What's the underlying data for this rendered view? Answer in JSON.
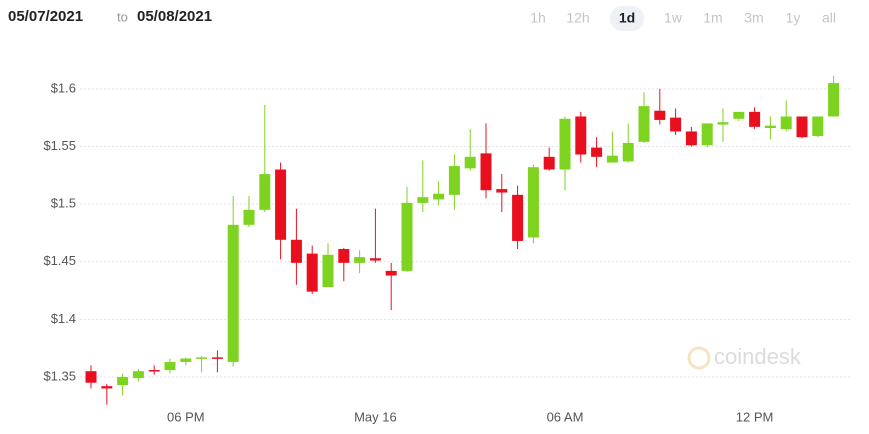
{
  "header": {
    "from": "05/07/2021",
    "to_word": "to",
    "to": "05/08/2021",
    "ranges": [
      "1h",
      "12h",
      "1d",
      "1w",
      "1m",
      "3m",
      "1y",
      "all"
    ],
    "active_range": 2
  },
  "watermark": "coindesk",
  "chart_data": {
    "type": "candlestick",
    "categories": [
      null,
      null,
      null,
      null,
      null,
      null,
      "06 PM",
      null,
      null,
      null,
      null,
      null,
      null,
      null,
      null,
      null,
      null,
      null,
      "May 16",
      null,
      null,
      null,
      null,
      null,
      null,
      null,
      null,
      null,
      null,
      null,
      "06 AM",
      null,
      null,
      null,
      null,
      null,
      null,
      null,
      null,
      null,
      null,
      null,
      "12 PM",
      null,
      null,
      null,
      null,
      null
    ],
    "open": [
      1.355,
      1.342,
      1.343,
      1.349,
      1.356,
      1.356,
      1.363,
      1.366,
      1.367,
      1.363,
      1.482,
      1.495,
      1.53,
      1.469,
      1.457,
      1.428,
      1.461,
      1.449,
      1.453,
      1.442,
      1.442,
      1.501,
      1.504,
      1.508,
      1.531,
      1.544,
      1.513,
      1.508,
      1.471,
      1.541,
      1.53,
      1.576,
      1.549,
      1.536,
      1.537,
      1.554,
      1.581,
      1.575,
      1.563,
      1.551,
      1.569,
      1.574,
      1.58,
      1.566,
      1.565,
      1.576,
      1.559,
      1.576
    ],
    "high": [
      1.36,
      1.344,
      1.353,
      1.357,
      1.36,
      1.366,
      1.367,
      1.368,
      1.373,
      1.507,
      1.507,
      1.586,
      1.536,
      1.496,
      1.464,
      1.466,
      1.462,
      1.46,
      1.496,
      1.449,
      1.515,
      1.538,
      1.52,
      1.543,
      1.565,
      1.57,
      1.526,
      1.516,
      1.534,
      1.549,
      1.576,
      1.58,
      1.558,
      1.563,
      1.57,
      1.597,
      1.6,
      1.583,
      1.567,
      1.57,
      1.583,
      1.58,
      1.584,
      1.576,
      1.59,
      1.576,
      1.576,
      1.611
    ],
    "low": [
      1.34,
      1.326,
      1.334,
      1.346,
      1.352,
      1.353,
      1.36,
      1.354,
      1.354,
      1.359,
      1.48,
      1.493,
      1.452,
      1.43,
      1.422,
      1.428,
      1.433,
      1.44,
      1.449,
      1.408,
      1.441,
      1.493,
      1.499,
      1.495,
      1.529,
      1.505,
      1.493,
      1.461,
      1.466,
      1.529,
      1.512,
      1.536,
      1.532,
      1.536,
      1.536,
      1.553,
      1.569,
      1.56,
      1.55,
      1.549,
      1.554,
      1.572,
      1.565,
      1.556,
      1.563,
      1.557,
      1.558,
      1.576
    ],
    "close": [
      1.345,
      1.34,
      1.35,
      1.355,
      1.355,
      1.363,
      1.366,
      1.367,
      1.366,
      1.482,
      1.495,
      1.526,
      1.469,
      1.449,
      1.424,
      1.456,
      1.449,
      1.454,
      1.451,
      1.438,
      1.501,
      1.506,
      1.509,
      1.533,
      1.541,
      1.512,
      1.51,
      1.468,
      1.532,
      1.53,
      1.574,
      1.543,
      1.541,
      1.542,
      1.553,
      1.585,
      1.573,
      1.563,
      1.551,
      1.57,
      1.571,
      1.58,
      1.567,
      1.568,
      1.576,
      1.558,
      1.576,
      1.605
    ],
    "up_color": "#7ed321",
    "down_color": "#e8101f",
    "ylim": [
      1.33,
      1.625
    ],
    "yticks": [
      {
        "value": 1.35,
        "label": "$1.35"
      },
      {
        "value": 1.4,
        "label": "$1.4"
      },
      {
        "value": 1.45,
        "label": "$1.45"
      },
      {
        "value": 1.5,
        "label": "$1.5"
      },
      {
        "value": 1.55,
        "label": "$1.55"
      },
      {
        "value": 1.6,
        "label": "$1.6"
      }
    ],
    "grid": true
  }
}
